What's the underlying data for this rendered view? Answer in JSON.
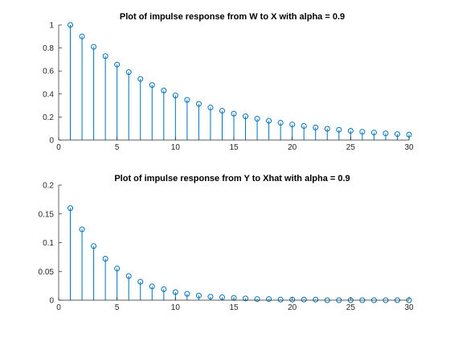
{
  "figure": {
    "background": "#ffffff",
    "stem_color": "#0072bd",
    "axis_color": "#262626"
  },
  "chart_data": [
    {
      "type": "stem",
      "title": "Plot of impulse response from W to X with alpha = 0.9",
      "xlabel": "",
      "ylabel": "",
      "xlim": [
        0,
        30
      ],
      "ylim": [
        0,
        1
      ],
      "xticks": [
        0,
        5,
        10,
        15,
        20,
        25,
        30
      ],
      "yticks": [
        0,
        0.2,
        0.4,
        0.6,
        0.8,
        1
      ],
      "ytick_labels": [
        "0",
        "0.2",
        "0.4",
        "0.6",
        "0.8",
        "1"
      ],
      "grid": false,
      "x": [
        1,
        2,
        3,
        4,
        5,
        6,
        7,
        8,
        9,
        10,
        11,
        12,
        13,
        14,
        15,
        16,
        17,
        18,
        19,
        20,
        21,
        22,
        23,
        24,
        25,
        26,
        27,
        28,
        29,
        30
      ],
      "y": [
        1.0,
        0.9,
        0.81,
        0.729,
        0.656,
        0.59,
        0.531,
        0.478,
        0.43,
        0.387,
        0.349,
        0.314,
        0.282,
        0.254,
        0.229,
        0.206,
        0.185,
        0.167,
        0.15,
        0.135,
        0.122,
        0.109,
        0.098,
        0.089,
        0.08,
        0.072,
        0.065,
        0.058,
        0.052,
        0.047
      ]
    },
    {
      "type": "stem",
      "title": "Plot of impulse response from Y to Xhat with alpha = 0.9",
      "xlabel": "",
      "ylabel": "",
      "xlim": [
        0,
        30
      ],
      "ylim": [
        0,
        0.2
      ],
      "xticks": [
        0,
        5,
        10,
        15,
        20,
        25,
        30
      ],
      "yticks": [
        0,
        0.05,
        0.1,
        0.15,
        0.2
      ],
      "ytick_labels": [
        "0",
        "0.05",
        "0.1",
        "0.15",
        "0.2"
      ],
      "grid": false,
      "x": [
        1,
        2,
        3,
        4,
        5,
        6,
        7,
        8,
        9,
        10,
        11,
        12,
        13,
        14,
        15,
        16,
        17,
        18,
        19,
        20,
        21,
        22,
        23,
        24,
        25,
        26,
        27,
        28,
        29,
        30
      ],
      "y": [
        0.16,
        0.123,
        0.094,
        0.072,
        0.055,
        0.042,
        0.032,
        0.024,
        0.019,
        0.014,
        0.011,
        0.008,
        0.006,
        0.005,
        0.004,
        0.003,
        0.002,
        0.002,
        0.001,
        0.001,
        0.001,
        0.001,
        0.0,
        0.0,
        0.0,
        0.0,
        0.0,
        0.0,
        0.0,
        0.0
      ]
    }
  ]
}
